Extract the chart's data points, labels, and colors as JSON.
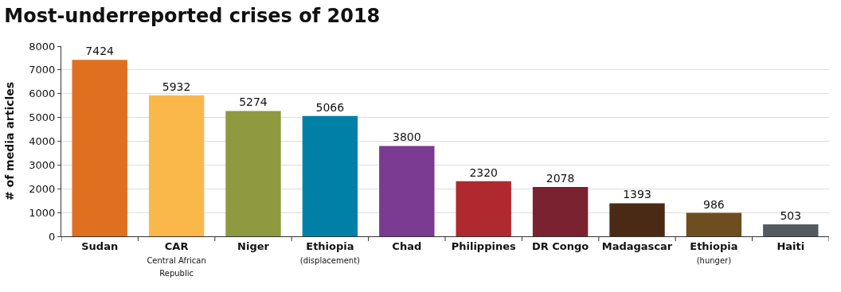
{
  "chart_data": {
    "type": "bar",
    "title": "Most-underreported crises of 2018",
    "ylabel": "# of media articles",
    "categories": [
      "Sudan",
      "CAR\nCentral African\nRepublic",
      "Niger",
      "Ethiopia\n(displacement)",
      "Chad",
      "Philippines",
      "DR Congo",
      "Madagascar",
      "Ethiopia\n(hunger)",
      "Haiti"
    ],
    "values": [
      7424,
      5932,
      5274,
      5066,
      3800,
      2320,
      2078,
      1393,
      986,
      503
    ],
    "colors": [
      "#e07020",
      "#fbb84a",
      "#8f9a40",
      "#0080a6",
      "#7b3a91",
      "#b0292e",
      "#7b2230",
      "#4a2a14",
      "#6e4e20",
      "#555a5e"
    ],
    "ylim": [
      0,
      8000
    ],
    "yticks": [
      0,
      1000,
      2000,
      3000,
      4000,
      5000,
      6000,
      7000,
      8000
    ],
    "grid": "y",
    "data_labels": true
  }
}
